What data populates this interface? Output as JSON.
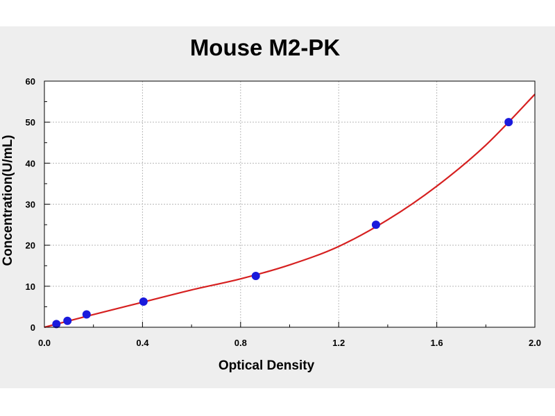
{
  "chart_data": {
    "type": "scatter",
    "title": "Mouse M2-PK",
    "xlabel": "Optical Density",
    "ylabel": "Concentration(U/mL)",
    "xlim": [
      0,
      2.0
    ],
    "ylim": [
      0,
      60
    ],
    "x_ticks": [
      "0.0",
      "0.4",
      "0.8",
      "1.2",
      "1.6",
      "2.0"
    ],
    "y_ticks": [
      "0",
      "10",
      "20",
      "30",
      "40",
      "50",
      "60"
    ],
    "grid": true,
    "colors": {
      "background": "#eeeeee",
      "plot_background": "#ffffff",
      "points": "#1a1adc",
      "curve": "#d62020",
      "grid": "#b8b8b8"
    },
    "series": [
      {
        "type": "scatter",
        "x": [
          0.049,
          0.094,
          0.172,
          0.404,
          0.862,
          1.352,
          1.893
        ],
        "y": [
          0.78,
          1.56,
          3.12,
          6.25,
          12.5,
          25,
          50
        ]
      },
      {
        "type": "line",
        "x": [
          0.0,
          0.2,
          0.4,
          0.6,
          0.8,
          1.0,
          1.2,
          1.4,
          1.6,
          1.8,
          2.0
        ],
        "y": [
          0.0,
          3.1,
          6.1,
          9.1,
          11.8,
          15.2,
          19.7,
          26.2,
          34.4,
          44.4,
          56.8
        ]
      }
    ]
  }
}
